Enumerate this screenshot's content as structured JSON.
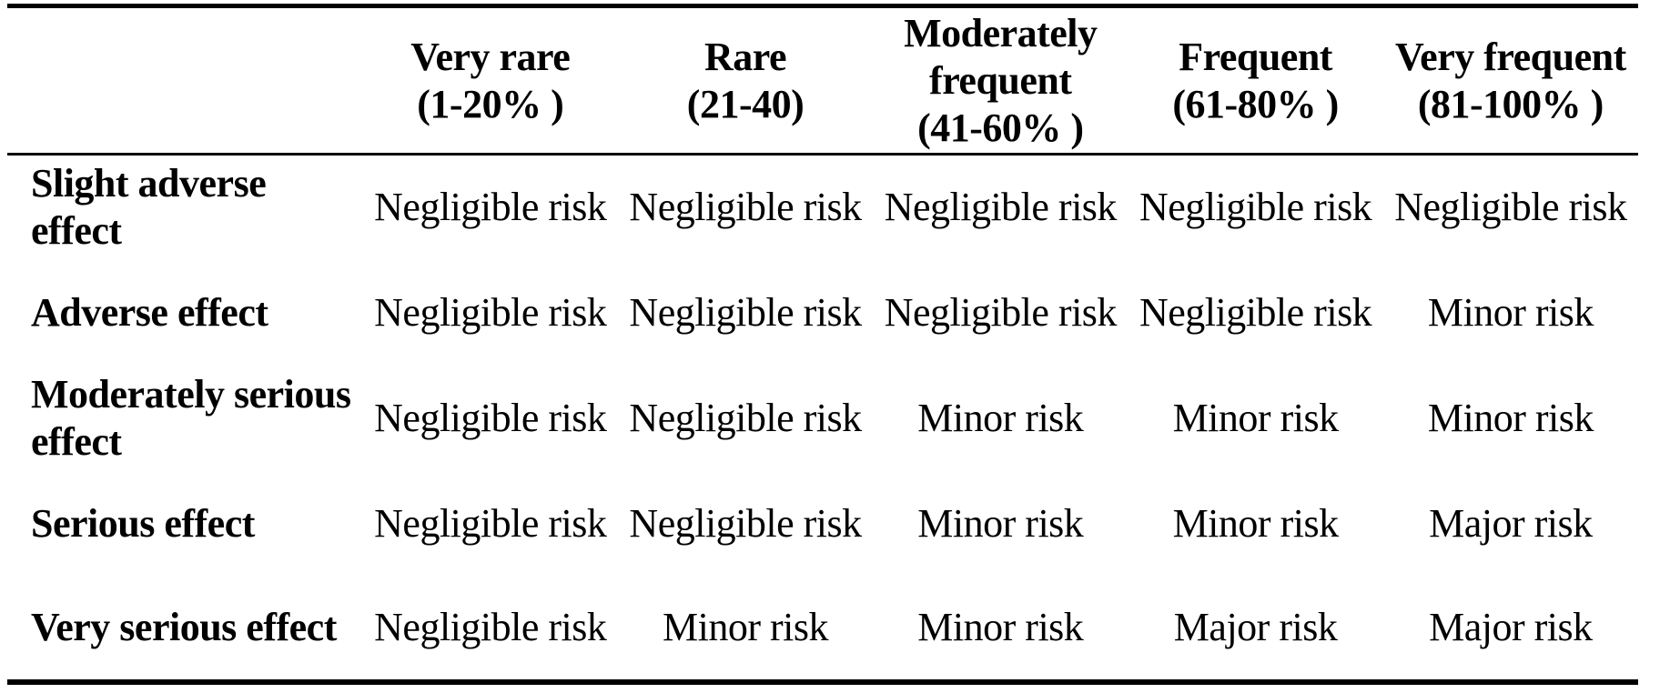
{
  "page": {
    "background_color": "#ffffff",
    "text_color": "#000000"
  },
  "risk_matrix_table": {
    "corner_label": "",
    "column_headers": [
      {
        "name": "Very rare",
        "range": "(1-20% )"
      },
      {
        "name": "Rare",
        "range": "(21-40)"
      },
      {
        "name": "Moderately frequent",
        "range": "(41-60% )"
      },
      {
        "name": "Frequent",
        "range": "(61-80% )"
      },
      {
        "name": "Very frequent",
        "range": "(81-100% )"
      }
    ],
    "risk_levels": [
      "Negligible risk",
      "Minor risk",
      "Major risk"
    ],
    "rows": [
      {
        "label": "Slight adverse effect",
        "cells": [
          "Negligible risk",
          "Negligible risk",
          "Negligible risk",
          "Negligible risk",
          "Negligible risk"
        ]
      },
      {
        "label": "Adverse effect",
        "cells": [
          "Negligible risk",
          "Negligible risk",
          "Negligible risk",
          "Negligible risk",
          "Minor risk"
        ]
      },
      {
        "label": "Moderately serious effect",
        "cells": [
          "Negligible risk",
          "Negligible risk",
          "Minor risk",
          "Minor risk",
          "Minor risk"
        ]
      },
      {
        "label": "Serious effect",
        "cells": [
          "Negligible risk",
          "Negligible risk",
          "Minor risk",
          "Minor risk",
          "Major risk"
        ]
      },
      {
        "label": "Very serious effect",
        "cells": [
          "Negligible risk",
          "Minor risk",
          "Minor risk",
          "Major risk",
          "Major risk"
        ]
      }
    ]
  }
}
